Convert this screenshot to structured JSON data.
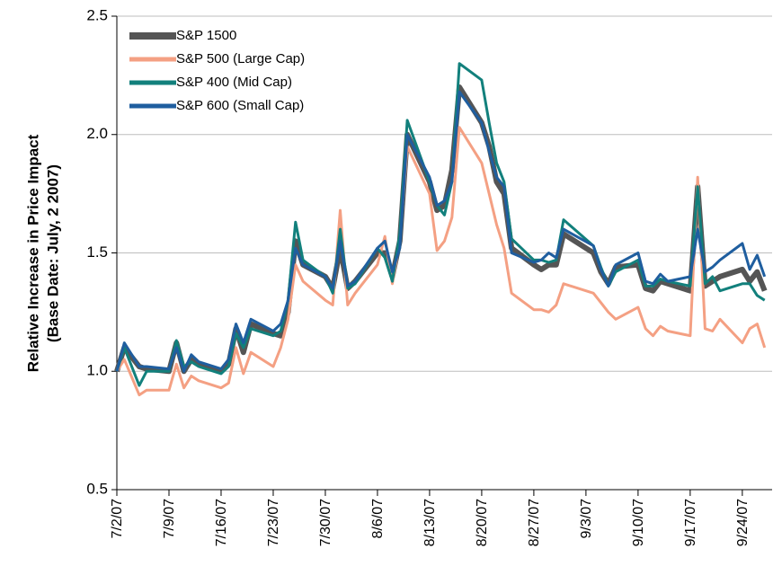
{
  "chart_data": {
    "type": "line",
    "ylabel": [
      "Relative Increase in Price Impact",
      "(Base Date: July, 2 2007)"
    ],
    "x": [
      "7/2/07",
      "7/3/07",
      "7/5/07",
      "7/6/07",
      "7/9/07",
      "7/10/07",
      "7/11/07",
      "7/12/07",
      "7/13/07",
      "7/16/07",
      "7/17/07",
      "7/18/07",
      "7/19/07",
      "7/20/07",
      "7/23/07",
      "7/24/07",
      "7/25/07",
      "7/26/07",
      "7/27/07",
      "7/30/07",
      "7/31/07",
      "8/1/07",
      "8/2/07",
      "8/3/07",
      "8/6/07",
      "8/7/07",
      "8/8/07",
      "8/9/07",
      "8/10/07",
      "8/13/07",
      "8/14/07",
      "8/15/07",
      "8/16/07",
      "8/17/07",
      "8/20/07",
      "8/21/07",
      "8/22/07",
      "8/23/07",
      "8/24/07",
      "8/27/07",
      "8/28/07",
      "8/29/07",
      "8/30/07",
      "8/31/07",
      "9/4/07",
      "9/5/07",
      "9/6/07",
      "9/7/07",
      "9/10/07",
      "9/11/07",
      "9/12/07",
      "9/13/07",
      "9/14/07",
      "9/17/07",
      "9/18/07",
      "9/19/07",
      "9/20/07",
      "9/21/07",
      "9/24/07",
      "9/25/07",
      "9/26/07",
      "9/27/07"
    ],
    "series": [
      {
        "name": "S&P 1500",
        "color": "#555555",
        "width": 6,
        "values": [
          1.0,
          1.1,
          1.02,
          1.01,
          1.0,
          1.12,
          1.0,
          1.05,
          1.03,
          1.0,
          1.03,
          1.18,
          1.08,
          1.2,
          1.16,
          1.15,
          1.25,
          1.55,
          1.45,
          1.4,
          1.35,
          1.52,
          1.35,
          1.38,
          1.5,
          1.5,
          1.4,
          1.55,
          2.0,
          1.8,
          1.68,
          1.7,
          1.85,
          2.2,
          2.05,
          1.95,
          1.8,
          1.75,
          1.52,
          1.45,
          1.43,
          1.45,
          1.45,
          1.58,
          1.5,
          1.42,
          1.37,
          1.44,
          1.45,
          1.35,
          1.34,
          1.38,
          1.37,
          1.34,
          1.78,
          1.36,
          1.38,
          1.4,
          1.43,
          1.38,
          1.42,
          1.34
        ]
      },
      {
        "name": "S&P 500 (Large Cap)",
        "color": "#f4a083",
        "width": 3,
        "values": [
          1.0,
          1.05,
          0.9,
          0.92,
          0.92,
          1.03,
          0.93,
          0.98,
          0.96,
          0.93,
          0.95,
          1.1,
          0.99,
          1.08,
          1.02,
          1.1,
          1.22,
          1.45,
          1.38,
          1.3,
          1.28,
          1.68,
          1.28,
          1.33,
          1.45,
          1.57,
          1.37,
          1.55,
          1.95,
          1.75,
          1.51,
          1.55,
          1.65,
          2.03,
          1.88,
          1.75,
          1.62,
          1.52,
          1.33,
          1.26,
          1.26,
          1.25,
          1.28,
          1.37,
          1.33,
          1.29,
          1.25,
          1.22,
          1.27,
          1.18,
          1.15,
          1.19,
          1.17,
          1.15,
          1.82,
          1.18,
          1.17,
          1.22,
          1.12,
          1.18,
          1.2,
          1.1
        ]
      },
      {
        "name": "S&P 400 (Mid Cap)",
        "color": "#12807c",
        "width": 3,
        "values": [
          1.0,
          1.1,
          0.94,
          1.0,
          1.0,
          1.13,
          1.02,
          1.04,
          1.02,
          0.99,
          1.02,
          1.16,
          1.1,
          1.18,
          1.15,
          1.17,
          1.3,
          1.63,
          1.47,
          1.4,
          1.33,
          1.6,
          1.35,
          1.37,
          1.52,
          1.48,
          1.38,
          1.58,
          2.06,
          1.8,
          1.7,
          1.66,
          1.8,
          2.3,
          2.23,
          2.05,
          1.88,
          1.8,
          1.56,
          1.47,
          1.47,
          1.46,
          1.47,
          1.64,
          1.53,
          1.44,
          1.36,
          1.42,
          1.47,
          1.36,
          1.36,
          1.39,
          1.38,
          1.36,
          1.78,
          1.37,
          1.4,
          1.34,
          1.37,
          1.37,
          1.32,
          1.3
        ]
      },
      {
        "name": "S&P 600 (Small Cap)",
        "color": "#1f5e9f",
        "width": 3,
        "values": [
          1.0,
          1.12,
          1.02,
          1.02,
          1.01,
          1.1,
          1.0,
          1.07,
          1.04,
          1.01,
          1.05,
          1.2,
          1.12,
          1.22,
          1.17,
          1.2,
          1.3,
          1.52,
          1.45,
          1.4,
          1.35,
          1.55,
          1.36,
          1.38,
          1.52,
          1.55,
          1.42,
          1.52,
          2.0,
          1.82,
          1.7,
          1.72,
          1.8,
          2.18,
          2.05,
          1.93,
          1.82,
          1.78,
          1.5,
          1.46,
          1.47,
          1.5,
          1.48,
          1.6,
          1.53,
          1.43,
          1.36,
          1.45,
          1.5,
          1.38,
          1.37,
          1.41,
          1.38,
          1.4,
          1.6,
          1.42,
          1.44,
          1.47,
          1.54,
          1.43,
          1.49,
          1.4
        ]
      }
    ],
    "xlim": [
      "7/2/07",
      "9/28/07"
    ],
    "xticks": [
      "7/2/07",
      "7/9/07",
      "7/16/07",
      "7/23/07",
      "7/30/07",
      "8/6/07",
      "8/13/07",
      "8/20/07",
      "8/27/07",
      "9/3/07",
      "9/10/07",
      "9/17/07",
      "9/24/07"
    ],
    "ylim": [
      0.5,
      2.5
    ],
    "yticks": [
      0.5,
      {
        "value": 1,
        "label": "1.0"
      },
      1.5,
      {
        "value": 2,
        "label": "2.0"
      },
      2.5
    ],
    "grid": true,
    "legend": "upper-left"
  }
}
